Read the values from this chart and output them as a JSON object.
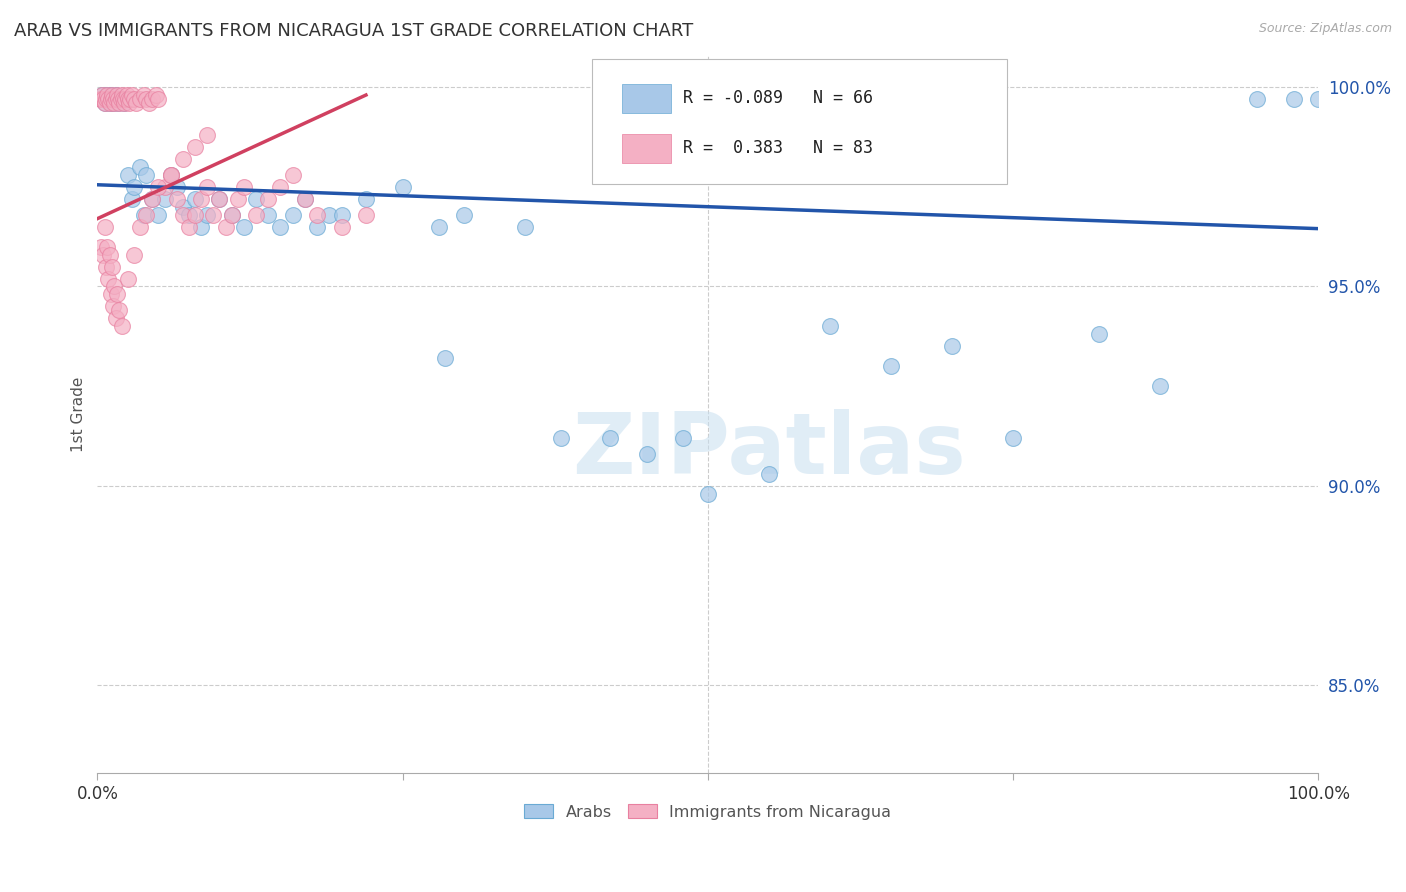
{
  "title": "ARAB VS IMMIGRANTS FROM NICARAGUA 1ST GRADE CORRELATION CHART",
  "source": "Source: ZipAtlas.com",
  "ylabel": "1st Grade",
  "xlim": [
    0,
    1.0
  ],
  "ylim": [
    0.828,
    1.008
  ],
  "yticks": [
    0.85,
    0.9,
    0.95,
    1.0
  ],
  "ytick_labels": [
    "85.0%",
    "90.0%",
    "95.0%",
    "100.0%"
  ],
  "xtick_labels": [
    "0.0%",
    "100.0%"
  ],
  "watermark": "ZIPatlas",
  "blue_color": "#a8c8e8",
  "blue_edge_color": "#6aaad4",
  "pink_color": "#f4b0c4",
  "pink_edge_color": "#e880a0",
  "blue_line_color": "#2255aa",
  "pink_line_color": "#d04060",
  "blue_scatter_x": [
    0.003,
    0.004,
    0.005,
    0.006,
    0.007,
    0.008,
    0.009,
    0.01,
    0.011,
    0.012,
    0.013,
    0.014,
    0.015,
    0.016,
    0.017,
    0.018,
    0.02,
    0.022,
    0.025,
    0.028,
    0.03,
    0.035,
    0.038,
    0.04,
    0.045,
    0.05,
    0.055,
    0.06,
    0.065,
    0.07,
    0.075,
    0.08,
    0.085,
    0.09,
    0.1,
    0.11,
    0.12,
    0.13,
    0.14,
    0.15,
    0.16,
    0.17,
    0.18,
    0.19,
    0.2,
    0.22,
    0.25,
    0.28,
    0.3,
    0.35,
    0.38,
    0.42,
    0.45,
    0.48,
    0.5,
    0.55,
    0.6,
    0.65,
    0.7,
    0.75,
    0.82,
    0.87,
    0.95,
    0.98,
    1.0,
    0.285
  ],
  "blue_scatter_y": [
    0.997,
    0.998,
    0.997,
    0.996,
    0.997,
    0.998,
    0.997,
    0.996,
    0.998,
    0.997,
    0.996,
    0.997,
    0.998,
    0.997,
    0.996,
    0.997,
    0.997,
    0.996,
    0.978,
    0.972,
    0.975,
    0.98,
    0.968,
    0.978,
    0.972,
    0.968,
    0.972,
    0.978,
    0.975,
    0.97,
    0.968,
    0.972,
    0.965,
    0.968,
    0.972,
    0.968,
    0.965,
    0.972,
    0.968,
    0.965,
    0.968,
    0.972,
    0.965,
    0.968,
    0.968,
    0.972,
    0.975,
    0.965,
    0.968,
    0.965,
    0.912,
    0.912,
    0.908,
    0.912,
    0.898,
    0.903,
    0.94,
    0.93,
    0.935,
    0.912,
    0.938,
    0.925,
    0.997,
    0.997,
    0.997,
    0.932
  ],
  "pink_scatter_x": [
    0.002,
    0.003,
    0.004,
    0.005,
    0.006,
    0.007,
    0.008,
    0.009,
    0.01,
    0.011,
    0.012,
    0.013,
    0.014,
    0.015,
    0.016,
    0.017,
    0.018,
    0.019,
    0.02,
    0.021,
    0.022,
    0.023,
    0.024,
    0.025,
    0.026,
    0.027,
    0.028,
    0.03,
    0.032,
    0.035,
    0.038,
    0.04,
    0.042,
    0.045,
    0.048,
    0.05,
    0.055,
    0.06,
    0.065,
    0.07,
    0.075,
    0.08,
    0.085,
    0.09,
    0.095,
    0.1,
    0.105,
    0.11,
    0.115,
    0.12,
    0.13,
    0.14,
    0.15,
    0.16,
    0.17,
    0.18,
    0.2,
    0.22,
    0.003,
    0.005,
    0.007,
    0.009,
    0.011,
    0.013,
    0.015,
    0.006,
    0.008,
    0.01,
    0.012,
    0.014,
    0.016,
    0.018,
    0.02,
    0.025,
    0.03,
    0.035,
    0.04,
    0.045,
    0.05,
    0.06,
    0.07,
    0.08,
    0.09
  ],
  "pink_scatter_y": [
    0.997,
    0.997,
    0.998,
    0.997,
    0.996,
    0.997,
    0.998,
    0.997,
    0.996,
    0.997,
    0.998,
    0.997,
    0.996,
    0.997,
    0.998,
    0.997,
    0.996,
    0.997,
    0.998,
    0.997,
    0.996,
    0.997,
    0.998,
    0.997,
    0.996,
    0.997,
    0.998,
    0.997,
    0.996,
    0.997,
    0.998,
    0.997,
    0.996,
    0.997,
    0.998,
    0.997,
    0.975,
    0.978,
    0.972,
    0.968,
    0.965,
    0.968,
    0.972,
    0.975,
    0.968,
    0.972,
    0.965,
    0.968,
    0.972,
    0.975,
    0.968,
    0.972,
    0.975,
    0.978,
    0.972,
    0.968,
    0.965,
    0.968,
    0.96,
    0.958,
    0.955,
    0.952,
    0.948,
    0.945,
    0.942,
    0.965,
    0.96,
    0.958,
    0.955,
    0.95,
    0.948,
    0.944,
    0.94,
    0.952,
    0.958,
    0.965,
    0.968,
    0.972,
    0.975,
    0.978,
    0.982,
    0.985,
    0.988
  ],
  "blue_trend_x": [
    0.0,
    1.0
  ],
  "blue_trend_y": [
    0.9755,
    0.9645
  ],
  "pink_trend_x": [
    0.0,
    0.22
  ],
  "pink_trend_y": [
    0.967,
    0.998
  ],
  "background_color": "#ffffff",
  "grid_color": "#cccccc",
  "title_fontsize": 13,
  "legend_r_blue": "R = -0.089",
  "legend_n_blue": "N = 66",
  "legend_r_pink": "R =  0.383",
  "legend_n_pink": "N = 83"
}
